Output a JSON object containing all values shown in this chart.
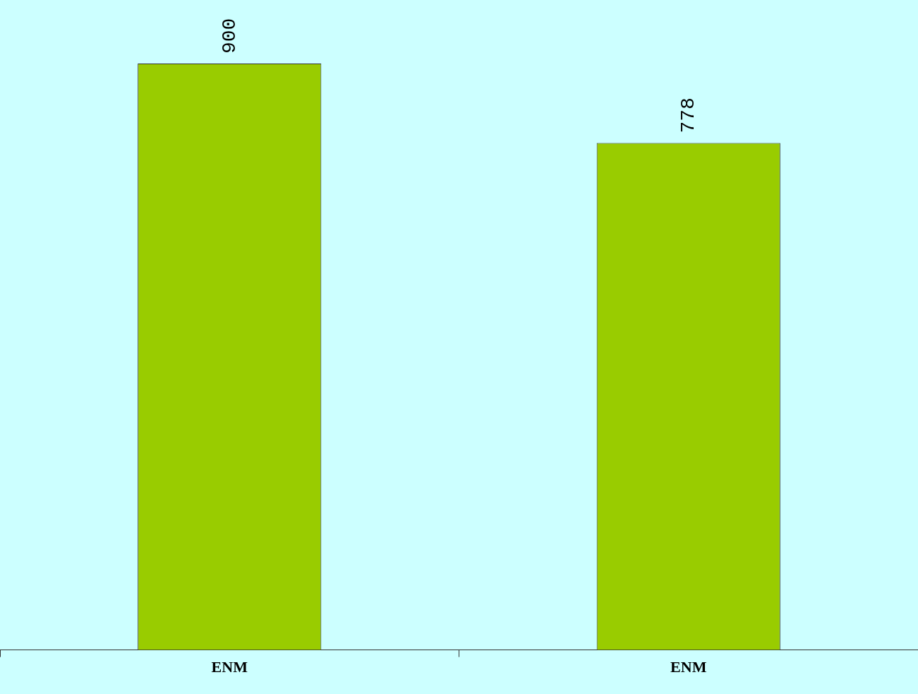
{
  "chart_data": {
    "type": "bar",
    "categories": [
      "ENM",
      "ENM"
    ],
    "values": [
      900,
      778
    ],
    "color": "#99cc00",
    "data_labels": true,
    "tick_labels": "x"
  }
}
